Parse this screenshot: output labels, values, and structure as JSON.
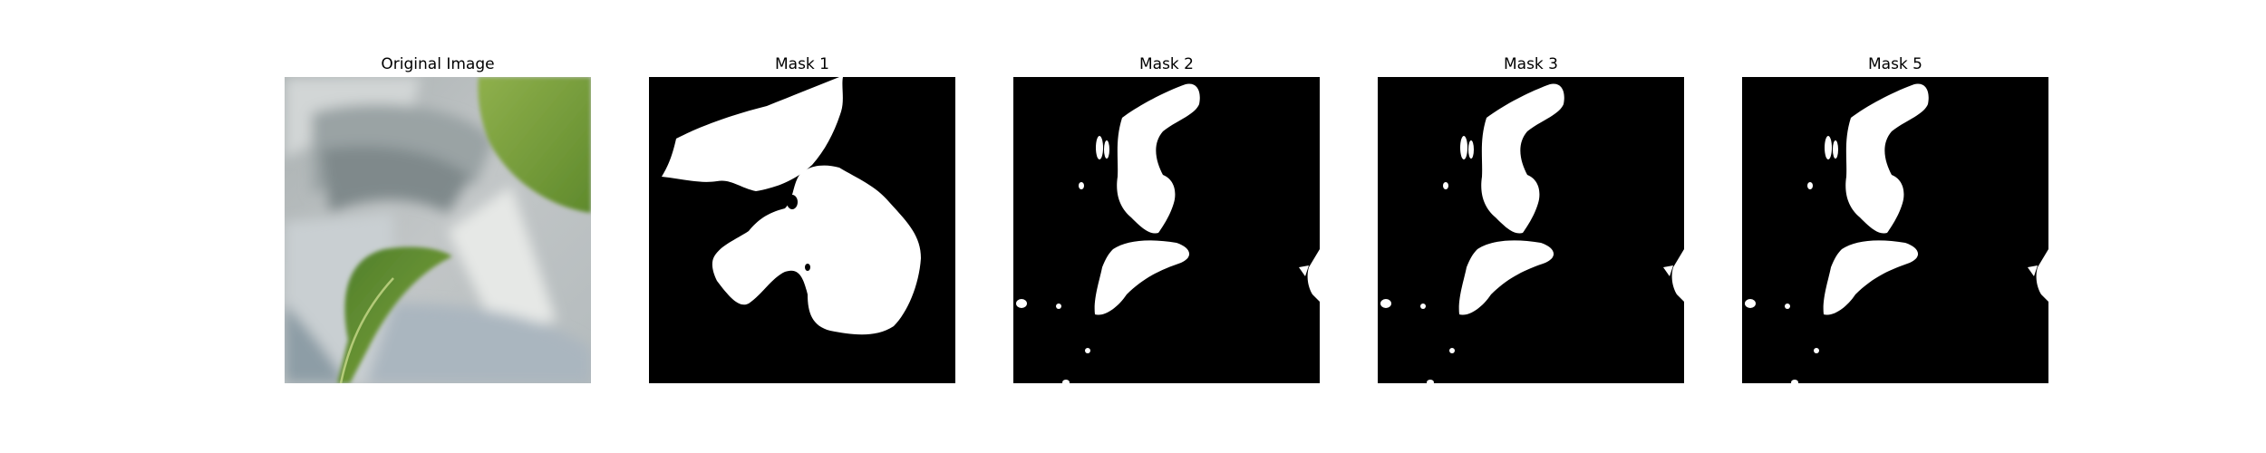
{
  "figure": {
    "panels": [
      {
        "title": "Original Image",
        "kind": "photo"
      },
      {
        "title": "Mask 1",
        "kind": "mask"
      },
      {
        "title": "Mask 2",
        "kind": "mask"
      },
      {
        "title": "Mask 3",
        "kind": "mask"
      },
      {
        "title": "Mask 5",
        "kind": "mask"
      }
    ],
    "colors": {
      "background": "#ffffff",
      "mask_background": "#000000",
      "mask_foreground": "#ffffff",
      "leaf_green": "#6f9a3a",
      "photo_gray": "#b9bfc1"
    }
  }
}
